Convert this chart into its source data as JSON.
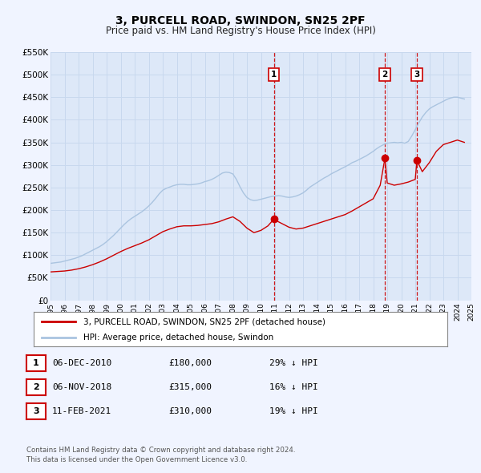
{
  "title": "3, PURCELL ROAD, SWINDON, SN25 2PF",
  "subtitle": "Price paid vs. HM Land Registry's House Price Index (HPI)",
  "xlim": [
    1995,
    2025
  ],
  "ylim": [
    0,
    550000
  ],
  "yticks": [
    0,
    50000,
    100000,
    150000,
    200000,
    250000,
    300000,
    350000,
    400000,
    450000,
    500000,
    550000
  ],
  "ytick_labels": [
    "£0",
    "£50K",
    "£100K",
    "£150K",
    "£200K",
    "£250K",
    "£300K",
    "£350K",
    "£400K",
    "£450K",
    "£500K",
    "£550K"
  ],
  "xticks": [
    1995,
    1996,
    1997,
    1998,
    1999,
    2000,
    2001,
    2002,
    2003,
    2004,
    2005,
    2006,
    2007,
    2008,
    2009,
    2010,
    2011,
    2012,
    2013,
    2014,
    2015,
    2016,
    2017,
    2018,
    2019,
    2020,
    2021,
    2022,
    2023,
    2024,
    2025
  ],
  "background_color": "#f0f4ff",
  "plot_bg_color": "#dde8f8",
  "grid_color": "#c8d8ee",
  "red_line_color": "#cc0000",
  "blue_line_color": "#aac4e0",
  "sale_marker_color": "#cc0000",
  "vline_color": "#cc0000",
  "label_box_color": "#cc0000",
  "legend_label_red": "3, PURCELL ROAD, SWINDON, SN25 2PF (detached house)",
  "legend_label_blue": "HPI: Average price, detached house, Swindon",
  "sale1_date": 2010.92,
  "sale1_price": 180000,
  "sale1_label": "1",
  "sale1_text": "06-DEC-2010",
  "sale1_amount": "£180,000",
  "sale1_hpi": "29% ↓ HPI",
  "sale2_date": 2018.84,
  "sale2_price": 315000,
  "sale2_label": "2",
  "sale2_text": "06-NOV-2018",
  "sale2_amount": "£315,000",
  "sale2_hpi": "16% ↓ HPI",
  "sale3_date": 2021.12,
  "sale3_price": 310000,
  "sale3_label": "3",
  "sale3_text": "11-FEB-2021",
  "sale3_amount": "£310,000",
  "sale3_hpi": "19% ↓ HPI",
  "footer1": "Contains HM Land Registry data © Crown copyright and database right 2024.",
  "footer2": "This data is licensed under the Open Government Licence v3.0.",
  "hpi_x": [
    1995.0,
    1995.25,
    1995.5,
    1995.75,
    1996.0,
    1996.25,
    1996.5,
    1996.75,
    1997.0,
    1997.25,
    1997.5,
    1997.75,
    1998.0,
    1998.25,
    1998.5,
    1998.75,
    1999.0,
    1999.25,
    1999.5,
    1999.75,
    2000.0,
    2000.25,
    2000.5,
    2000.75,
    2001.0,
    2001.25,
    2001.5,
    2001.75,
    2002.0,
    2002.25,
    2002.5,
    2002.75,
    2003.0,
    2003.25,
    2003.5,
    2003.75,
    2004.0,
    2004.25,
    2004.5,
    2004.75,
    2005.0,
    2005.25,
    2005.5,
    2005.75,
    2006.0,
    2006.25,
    2006.5,
    2006.75,
    2007.0,
    2007.25,
    2007.5,
    2007.75,
    2008.0,
    2008.25,
    2008.5,
    2008.75,
    2009.0,
    2009.25,
    2009.5,
    2009.75,
    2010.0,
    2010.25,
    2010.5,
    2010.75,
    2011.0,
    2011.25,
    2011.5,
    2011.75,
    2012.0,
    2012.25,
    2012.5,
    2012.75,
    2013.0,
    2013.25,
    2013.5,
    2013.75,
    2014.0,
    2014.25,
    2014.5,
    2014.75,
    2015.0,
    2015.25,
    2015.5,
    2015.75,
    2016.0,
    2016.25,
    2016.5,
    2016.75,
    2017.0,
    2017.25,
    2017.5,
    2017.75,
    2018.0,
    2018.25,
    2018.5,
    2018.75,
    2019.0,
    2019.25,
    2019.5,
    2019.75,
    2020.0,
    2020.25,
    2020.5,
    2020.75,
    2021.0,
    2021.25,
    2021.5,
    2021.75,
    2022.0,
    2022.25,
    2022.5,
    2022.75,
    2023.0,
    2023.25,
    2023.5,
    2023.75,
    2024.0,
    2024.25,
    2024.5
  ],
  "hpi_y": [
    82000,
    83000,
    84000,
    85000,
    87000,
    89000,
    91000,
    93000,
    96000,
    99000,
    103000,
    107000,
    111000,
    115000,
    119000,
    124000,
    130000,
    137000,
    144000,
    152000,
    160000,
    168000,
    175000,
    181000,
    186000,
    191000,
    196000,
    202000,
    209000,
    217000,
    226000,
    236000,
    244000,
    248000,
    251000,
    254000,
    256000,
    257000,
    257000,
    256000,
    256000,
    257000,
    258000,
    260000,
    263000,
    265000,
    268000,
    272000,
    277000,
    282000,
    284000,
    283000,
    280000,
    268000,
    252000,
    238000,
    228000,
    223000,
    221000,
    222000,
    224000,
    226000,
    228000,
    230000,
    231000,
    232000,
    231000,
    229000,
    228000,
    229000,
    231000,
    234000,
    238000,
    244000,
    251000,
    256000,
    261000,
    266000,
    271000,
    275000,
    280000,
    284000,
    288000,
    292000,
    296000,
    300000,
    305000,
    308000,
    312000,
    316000,
    320000,
    325000,
    330000,
    336000,
    341000,
    345000,
    348000,
    349000,
    350000,
    349000,
    350000,
    348000,
    352000,
    364000,
    378000,
    393000,
    406000,
    416000,
    424000,
    429000,
    433000,
    437000,
    441000,
    445000,
    448000,
    450000,
    450000,
    448000,
    446000
  ],
  "red_x": [
    1995.0,
    1995.5,
    1996.0,
    1996.5,
    1997.0,
    1997.5,
    1998.0,
    1998.5,
    1999.0,
    1999.5,
    2000.0,
    2000.5,
    2001.0,
    2001.5,
    2002.0,
    2002.5,
    2003.0,
    2003.5,
    2004.0,
    2004.5,
    2005.0,
    2005.5,
    2006.0,
    2006.5,
    2007.0,
    2007.5,
    2008.0,
    2008.5,
    2009.0,
    2009.5,
    2010.0,
    2010.5,
    2010.92,
    2011.0,
    2011.5,
    2012.0,
    2012.5,
    2013.0,
    2013.5,
    2014.0,
    2014.5,
    2015.0,
    2015.5,
    2016.0,
    2016.5,
    2017.0,
    2017.5,
    2018.0,
    2018.5,
    2018.84,
    2019.0,
    2019.5,
    2020.0,
    2020.5,
    2021.0,
    2021.12,
    2021.5,
    2022.0,
    2022.5,
    2023.0,
    2023.5,
    2024.0,
    2024.5
  ],
  "red_y": [
    63000,
    64000,
    65000,
    67000,
    70000,
    74000,
    79000,
    85000,
    92000,
    100000,
    108000,
    115000,
    121000,
    127000,
    134000,
    143000,
    152000,
    158000,
    163000,
    165000,
    165000,
    166000,
    168000,
    170000,
    174000,
    180000,
    185000,
    175000,
    160000,
    150000,
    155000,
    165000,
    180000,
    178000,
    170000,
    162000,
    158000,
    160000,
    165000,
    170000,
    175000,
    180000,
    185000,
    190000,
    198000,
    207000,
    216000,
    225000,
    255000,
    315000,
    260000,
    255000,
    258000,
    262000,
    268000,
    310000,
    285000,
    305000,
    330000,
    345000,
    350000,
    355000,
    350000
  ]
}
